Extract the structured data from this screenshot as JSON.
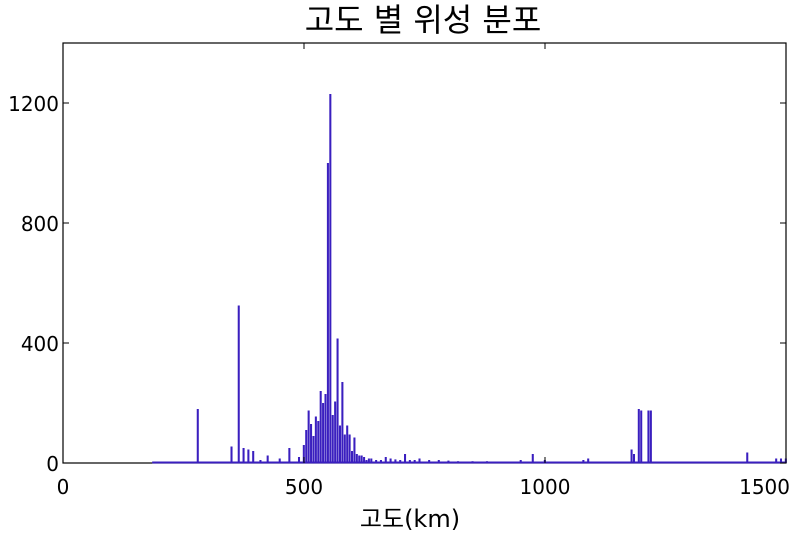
{
  "chart_data": {
    "type": "bar",
    "title": "고도 별 위성 분포",
    "xlabel": "고도(km)",
    "ylabel": "",
    "xlim": [
      0,
      1500
    ],
    "ylim": [
      0,
      1400
    ],
    "xticks": [
      0,
      500,
      1000,
      1500
    ],
    "yticks": [
      0,
      400,
      800,
      1200
    ],
    "xtick_labels": [
      "0",
      "500",
      "1000",
      "1500"
    ],
    "ytick_labels": [
      "0",
      "400",
      "800",
      "1200"
    ],
    "grid": false,
    "bar_color": "#3a1fbf",
    "bin_width_km": 5,
    "series": [
      {
        "x": [
          280,
          350,
          365,
          375,
          385,
          395,
          410,
          425,
          450,
          470,
          490,
          500,
          505,
          510,
          515,
          520,
          525,
          530,
          535,
          540,
          545,
          550,
          555,
          560,
          565,
          570,
          575,
          580,
          585,
          590,
          595,
          600,
          605,
          610,
          615,
          620,
          625,
          630,
          635,
          640,
          650,
          660,
          670,
          680,
          690,
          700,
          710,
          720,
          730,
          740,
          760,
          780,
          800,
          820,
          850,
          880,
          900,
          950,
          975,
          1000,
          1050,
          1080,
          1090,
          1180,
          1185,
          1195,
          1200,
          1215,
          1220,
          1420,
          1480,
          1490,
          1500
        ],
        "values": [
          180,
          55,
          525,
          50,
          45,
          40,
          10,
          25,
          15,
          50,
          20,
          60,
          110,
          175,
          130,
          90,
          155,
          140,
          240,
          200,
          230,
          1000,
          1230,
          160,
          205,
          415,
          125,
          270,
          95,
          125,
          95,
          40,
          85,
          30,
          25,
          25,
          20,
          10,
          15,
          15,
          10,
          10,
          20,
          15,
          12,
          10,
          30,
          10,
          10,
          15,
          10,
          10,
          8,
          6,
          6,
          6,
          5,
          10,
          30,
          10,
          5,
          10,
          15,
          45,
          30,
          180,
          175,
          175,
          175,
          35,
          15,
          15,
          15
        ]
      }
    ]
  }
}
